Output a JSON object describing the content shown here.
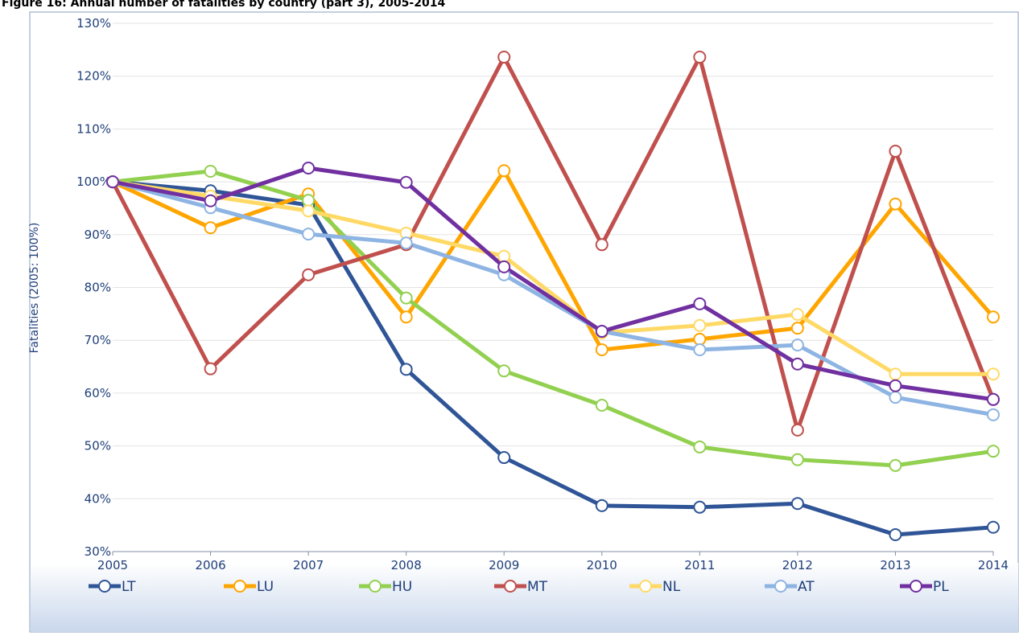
{
  "chart_data": {
    "type": "line",
    "title": "Figure 16:     Annual number of fatalities by country (part 3), 2005-2014",
    "y_label": "Fatalities (2005: 100%)",
    "x": [
      2005,
      2006,
      2007,
      2008,
      2009,
      2010,
      2011,
      2012,
      2013,
      2014
    ],
    "xlim": [
      2005,
      2014
    ],
    "xticks": [
      2005,
      2006,
      2007,
      2008,
      2009,
      2010,
      2011,
      2012,
      2013,
      2014
    ],
    "ylim": [
      30,
      130
    ],
    "yticks": [
      {
        "value": 30,
        "label": "30%"
      },
      {
        "value": 40,
        "label": "40%"
      },
      {
        "value": 50,
        "label": "50%"
      },
      {
        "value": 60,
        "label": "60%"
      },
      {
        "value": 70,
        "label": "70%"
      },
      {
        "value": 80,
        "label": "80%"
      },
      {
        "value": 90,
        "label": "90%"
      },
      {
        "value": 100,
        "label": "100%"
      },
      {
        "value": 110,
        "label": "110%"
      },
      {
        "value": 120,
        "label": "120%"
      },
      {
        "value": 130,
        "label": "130%"
      }
    ],
    "grid": true,
    "legend": "bottom",
    "series": [
      {
        "name": "LT",
        "color": "#2f5597",
        "values": [
          100,
          98.3,
          95.6,
          64.5,
          47.8,
          38.7,
          38.4,
          39.1,
          33.2,
          34.6
        ]
      },
      {
        "name": "LU",
        "color": "#ffa500",
        "values": [
          100,
          91.3,
          97.7,
          74.4,
          102.1,
          68.2,
          70.2,
          72.3,
          95.8,
          74.4
        ]
      },
      {
        "name": "HU",
        "color": "#92d050",
        "values": [
          100,
          102,
          96.5,
          78,
          64.2,
          57.7,
          49.8,
          47.4,
          46.3,
          49
        ]
      },
      {
        "name": "MT",
        "color": "#c0504d",
        "values": [
          100,
          64.6,
          82.4,
          88.1,
          123.6,
          88.1,
          123.6,
          53,
          105.8,
          58.8
        ]
      },
      {
        "name": "NL",
        "color": "#ffd966",
        "values": [
          100,
          97.3,
          94.5,
          90.3,
          85.9,
          71.4,
          72.8,
          74.9,
          63.6,
          63.6
        ]
      },
      {
        "name": "AT",
        "color": "#8db4e2",
        "values": [
          100,
          95.1,
          90.1,
          88.4,
          82.4,
          71.7,
          68.2,
          69.1,
          59.2,
          55.9
        ]
      },
      {
        "name": "PL",
        "color": "#7030a0",
        "values": [
          100,
          96.4,
          102.6,
          99.9,
          83.9,
          71.7,
          76.9,
          65.5,
          61.4,
          58.8
        ]
      }
    ]
  }
}
